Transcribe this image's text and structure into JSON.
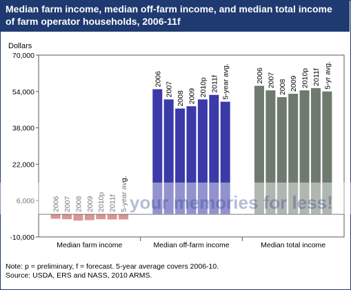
{
  "title": "Median farm income, median off-farm income, and median total income of farm operator households, 2006-11f",
  "chart_data": {
    "type": "bar",
    "ylabel": "Dollars",
    "ylim": [
      -10000,
      70000
    ],
    "yticks": [
      -10000,
      6000,
      22000,
      38000,
      54000,
      70000
    ],
    "ytick_labels": [
      "-10,000",
      "6,000",
      "22,000",
      "38,000",
      "54,000",
      "70,000"
    ],
    "grid": false,
    "groups": [
      {
        "name": "Median farm income",
        "color": "#d99694",
        "labels": [
          "2006",
          "2007",
          "2008",
          "2009",
          "2010p",
          "2011f",
          "5-year avg."
        ],
        "values": [
          -2000,
          -2200,
          -2800,
          -2600,
          -2200,
          -2300,
          -2300
        ]
      },
      {
        "name": "Median off-farm income",
        "color": "#3a3aa8",
        "labels": [
          "2006",
          "2007",
          "2008",
          "2009",
          "2010p",
          "2011f",
          "5-year avg."
        ],
        "values": [
          55000,
          50500,
          46500,
          47500,
          50500,
          52500,
          49500
        ]
      },
      {
        "name": "Median total income",
        "color": "#6f7a6f",
        "labels": [
          "2006",
          "2007",
          "2008",
          "2009",
          "2010p",
          "2011f",
          "5-yr avg."
        ],
        "values": [
          56500,
          54500,
          51500,
          53000,
          54500,
          55500,
          54000
        ]
      }
    ]
  },
  "watermark": "your memories for less!",
  "notes": {
    "line1": "Note: p = preliminary, f = forecast. 5-year average covers 2006-10.",
    "line2": "Source: USDA, ERS and NASS, 2010 ARMS."
  }
}
